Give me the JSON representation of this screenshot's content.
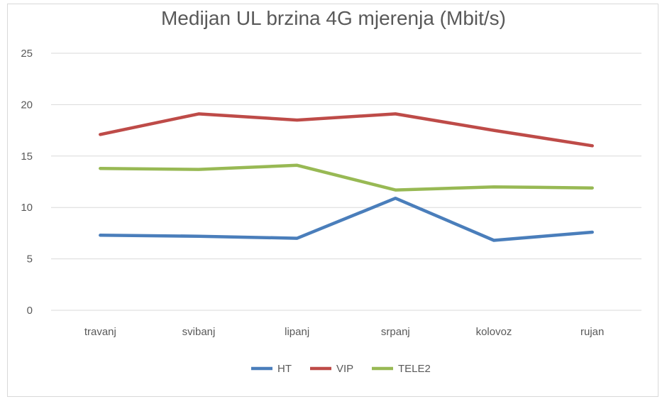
{
  "chart_data": {
    "type": "line",
    "title": "Medijan UL brzina 4G mjerenja (Mbit/s)",
    "xlabel": "",
    "ylabel": "",
    "categories": [
      "travanj",
      "svibanj",
      "lipanj",
      "srpanj",
      "kolovoz",
      "rujan"
    ],
    "ylim": [
      0,
      25
    ],
    "yticks": [
      0,
      5,
      10,
      15,
      20,
      25
    ],
    "grid": true,
    "legend_position": "bottom",
    "series": [
      {
        "name": "HT",
        "color": "#4a7ebb",
        "values": [
          7.3,
          7.2,
          7.0,
          10.9,
          6.8,
          7.6
        ]
      },
      {
        "name": "VIP",
        "color": "#be4b48",
        "values": [
          17.1,
          19.1,
          18.5,
          19.1,
          17.5,
          16.0
        ]
      },
      {
        "name": "TELE2",
        "color": "#98b954",
        "values": [
          13.8,
          13.7,
          14.1,
          11.7,
          12.0,
          11.9
        ]
      }
    ]
  }
}
